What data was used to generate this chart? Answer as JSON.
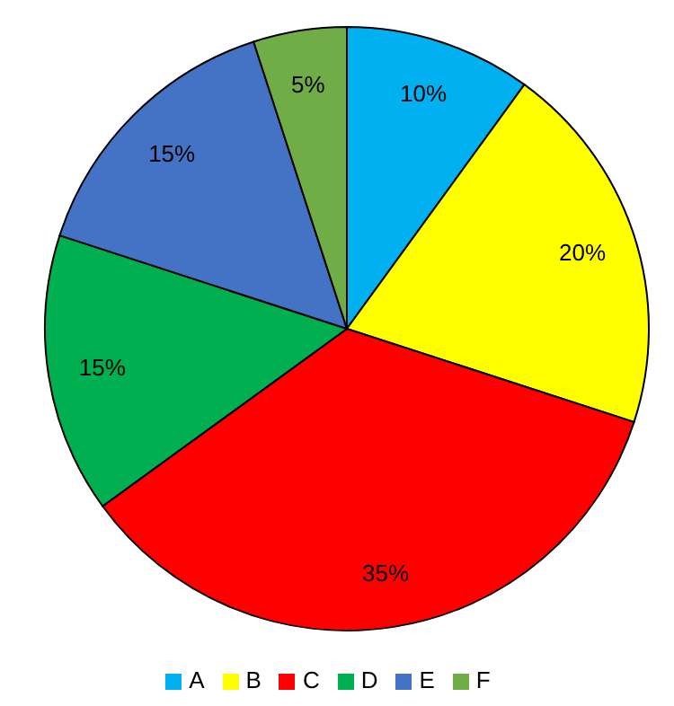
{
  "chart_data": {
    "type": "pie",
    "categories": [
      "A",
      "B",
      "C",
      "D",
      "E",
      "F"
    ],
    "values": [
      10,
      20,
      35,
      15,
      15,
      5
    ],
    "colors": [
      "#00b0f0",
      "#ffff00",
      "#ff0000",
      "#00b050",
      "#4472c4",
      "#70ad47"
    ],
    "value_labels": [
      "10%",
      "20%",
      "35%",
      "15%",
      "15%",
      "5%"
    ],
    "legend": "bottom"
  }
}
